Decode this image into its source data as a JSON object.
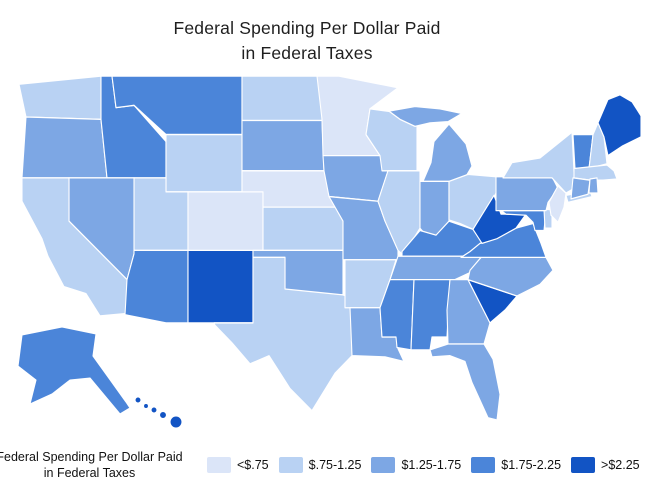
{
  "title": {
    "line1": "Federal Spending Per Dollar Paid",
    "line2": "in Federal Taxes"
  },
  "legend": {
    "label_line1": "Federal Spending Per Dollar Paid",
    "label_line2": "in Federal Taxes",
    "bins": [
      {
        "label": "<$.75",
        "color": "#dbe5f8"
      },
      {
        "label": "$.75-1.25",
        "color": "#b9d2f3"
      },
      {
        "label": "$1.25-1.75",
        "color": "#7da7e4"
      },
      {
        "label": "$1.75-2.25",
        "color": "#4b85d9"
      },
      {
        "label": ">$2.25",
        "color": "#1254c4"
      }
    ]
  },
  "chart_data": {
    "type": "heatmap",
    "subtype": "us-choropleth-map",
    "title": "Federal Spending Per Dollar Paid in Federal Taxes",
    "legend_position": "bottom",
    "bins": [
      "<$.75",
      "$.75-1.25",
      "$1.25-1.75",
      "$1.75-2.25",
      ">$2.25"
    ],
    "states": {
      "WA": "$.75-1.25",
      "OR": "$1.25-1.75",
      "CA": "$.75-1.25",
      "NV": "$1.25-1.75",
      "ID": "$1.75-2.25",
      "MT": "$1.75-2.25",
      "WY": "$.75-1.25",
      "UT": "$.75-1.25",
      "CO": "<$.75",
      "AZ": "$1.75-2.25",
      "NM": ">$2.25",
      "ND": "$.75-1.25",
      "SD": "$1.25-1.75",
      "NE": "<$.75",
      "KS": "$.75-1.25",
      "OK": "$1.25-1.75",
      "TX": "$.75-1.25",
      "MN": "<$.75",
      "IA": "$1.25-1.75",
      "MO": "$1.25-1.75",
      "AR": "$.75-1.25",
      "LA": "$1.25-1.75",
      "WI": "$.75-1.25",
      "IL": "$.75-1.25",
      "MI": "$1.25-1.75",
      "IN": "$1.25-1.75",
      "OH": "$.75-1.25",
      "KY": "$1.75-2.25",
      "TN": "$1.25-1.75",
      "MS": "$1.75-2.25",
      "AL": "$1.75-2.25",
      "GA": "$1.25-1.75",
      "FL": "$1.25-1.75",
      "SC": ">$2.25",
      "NC": "$1.25-1.75",
      "VA": "$1.75-2.25",
      "WV": ">$2.25",
      "PA": "$1.25-1.75",
      "NY": "$.75-1.25",
      "NJ": "<$.75",
      "DE": "$.75-1.25",
      "MD": "$1.75-2.25",
      "CT": "$1.25-1.75",
      "RI": "$1.25-1.75",
      "MA": "$.75-1.25",
      "VT": "$1.75-2.25",
      "NH": "$.75-1.25",
      "ME": ">$2.25",
      "AK": "$1.75-2.25",
      "HI": ">$2.25"
    }
  }
}
